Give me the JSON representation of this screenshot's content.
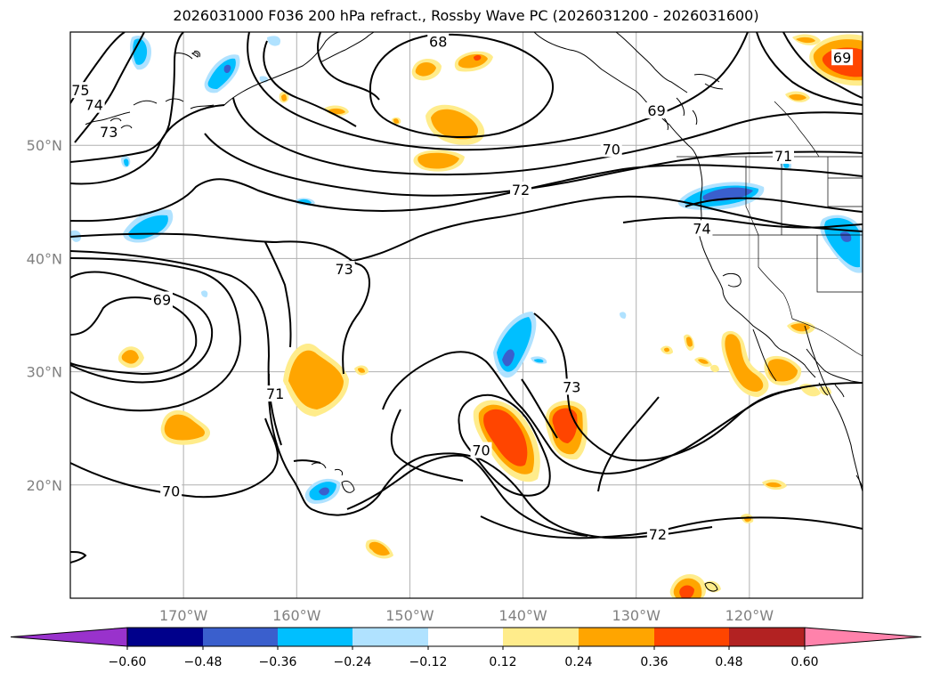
{
  "title": "2026031000 F036 200 hPa refract., Rossby Wave PC (2026031200 - 2026031600)",
  "map": {
    "lon_min": -180,
    "lon_max": -110,
    "lat_min": 10,
    "lat_max": 60,
    "lat_labels": [
      {
        "lat": 50,
        "text": "50°N"
      },
      {
        "lat": 40,
        "text": "40°N"
      },
      {
        "lat": 30,
        "text": "30°N"
      },
      {
        "lat": 20,
        "text": "20°N"
      }
    ],
    "lon_labels": [
      {
        "lon": -170,
        "text": "170°W"
      },
      {
        "lon": -160,
        "text": "160°W"
      },
      {
        "lon": -150,
        "text": "150°W"
      },
      {
        "lon": -140,
        "text": "140°W"
      },
      {
        "lon": -130,
        "text": "130°W"
      },
      {
        "lon": -120,
        "text": "120°W"
      }
    ],
    "contour_labels": [
      {
        "text": "68",
        "lon": -147.5,
        "lat": 59.1
      },
      {
        "text": "69",
        "lon": -128.2,
        "lat": 53.0
      },
      {
        "text": "70",
        "lon": -132.2,
        "lat": 49.6
      },
      {
        "text": "72",
        "lon": -140.2,
        "lat": 46.0
      },
      {
        "text": "73",
        "lon": -155.8,
        "lat": 39.0
      },
      {
        "text": "69",
        "lon": -171.9,
        "lat": 36.3
      },
      {
        "text": "71",
        "lon": -161.9,
        "lat": 28.0
      },
      {
        "text": "70",
        "lon": -171.1,
        "lat": 19.4
      },
      {
        "text": "72",
        "lon": -128.1,
        "lat": 15.6
      },
      {
        "text": "73",
        "lon": -135.7,
        "lat": 28.6
      },
      {
        "text": "70",
        "lon": -143.7,
        "lat": 23.0
      },
      {
        "text": "74",
        "lon": -124.2,
        "lat": 42.6
      },
      {
        "text": "75",
        "lon": -179.1,
        "lat": 54.8
      },
      {
        "text": "74",
        "lon": -177.9,
        "lat": 53.5
      },
      {
        "text": "73",
        "lon": -176.6,
        "lat": 51.1
      },
      {
        "text": "69",
        "lon": -111.8,
        "lat": 57.7
      },
      {
        "text": "71",
        "lon": -117.0,
        "lat": 49.0
      }
    ]
  },
  "colorbar": {
    "ticks": [
      "−0.60",
      "−0.48",
      "−0.36",
      "−0.24",
      "−0.12",
      "0.12",
      "0.24",
      "0.36",
      "0.48",
      "0.60"
    ],
    "colors": [
      "#9932cc",
      "#00008b",
      "#3a5fcd",
      "#00bfff",
      "#b0e2ff",
      "#ffffff",
      "#ffec8b",
      "#ffa500",
      "#ff4500",
      "#b22222",
      "#ff82ab"
    ]
  }
}
